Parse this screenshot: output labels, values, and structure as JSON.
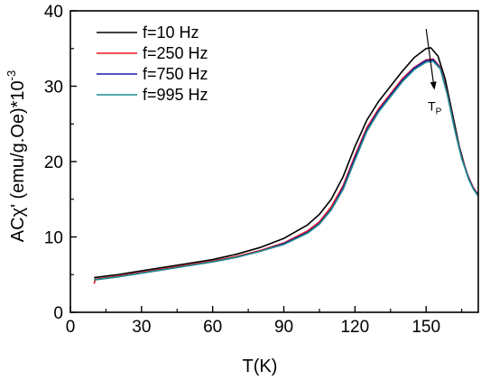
{
  "chart_data": {
    "type": "line",
    "xlabel": "T(K)",
    "ylabel": {
      "prefix": "ACχ' (emu/g.Oe)*10",
      "exponent": "-3"
    },
    "xlim": [
      0,
      172
    ],
    "ylim": [
      0,
      40
    ],
    "xticks": [
      0,
      30,
      60,
      90,
      120,
      150
    ],
    "yticks": [
      0,
      10,
      20,
      30,
      40
    ],
    "grid": false,
    "legend_position": "top-left",
    "annotation": {
      "text": "T",
      "subscript": "P",
      "arrow": true,
      "arrow_from": [
        150,
        37.6
      ],
      "arrow_to": [
        153.5,
        29.5
      ],
      "label_at": [
        153,
        27.5
      ]
    },
    "series": [
      {
        "name": "f=10 Hz",
        "color": "#000000",
        "points": [
          [
            10,
            4.6
          ],
          [
            20,
            5.0
          ],
          [
            30,
            5.5
          ],
          [
            40,
            6.0
          ],
          [
            50,
            6.5
          ],
          [
            60,
            7.0
          ],
          [
            70,
            7.7
          ],
          [
            80,
            8.6
          ],
          [
            90,
            9.8
          ],
          [
            100,
            11.6
          ],
          [
            105,
            13.0
          ],
          [
            110,
            15.0
          ],
          [
            115,
            18.0
          ],
          [
            120,
            22.0
          ],
          [
            125,
            25.5
          ],
          [
            130,
            28.0
          ],
          [
            135,
            30.0
          ],
          [
            140,
            32.0
          ],
          [
            145,
            33.8
          ],
          [
            150,
            35.0
          ],
          [
            152,
            35.1
          ],
          [
            155,
            34.0
          ],
          [
            158,
            31.0
          ],
          [
            161,
            26.5
          ],
          [
            164,
            22.0
          ],
          [
            167,
            18.6
          ],
          [
            170,
            16.4
          ],
          [
            172,
            15.6
          ]
        ]
      },
      {
        "name": "f=250 Hz",
        "color": "#e8141c",
        "points": [
          [
            10,
            3.8
          ],
          [
            10.5,
            4.4
          ],
          [
            20,
            4.8
          ],
          [
            30,
            5.3
          ],
          [
            40,
            5.8
          ],
          [
            50,
            6.3
          ],
          [
            60,
            6.8
          ],
          [
            70,
            7.4
          ],
          [
            80,
            8.2
          ],
          [
            90,
            9.2
          ],
          [
            100,
            10.8
          ],
          [
            105,
            12.0
          ],
          [
            110,
            14.0
          ],
          [
            115,
            16.8
          ],
          [
            120,
            20.8
          ],
          [
            125,
            24.5
          ],
          [
            130,
            27.0
          ],
          [
            135,
            29.0
          ],
          [
            140,
            31.0
          ],
          [
            145,
            32.5
          ],
          [
            150,
            33.5
          ],
          [
            153,
            33.6
          ],
          [
            156,
            32.5
          ],
          [
            159,
            29.0
          ],
          [
            162,
            24.5
          ],
          [
            165,
            20.6
          ],
          [
            168,
            17.8
          ],
          [
            170,
            16.5
          ],
          [
            172,
            15.6
          ]
        ]
      },
      {
        "name": "f=750 Hz",
        "color": "#1a1aa8",
        "points": [
          [
            10,
            4.3
          ],
          [
            20,
            4.7
          ],
          [
            30,
            5.2
          ],
          [
            40,
            5.7
          ],
          [
            50,
            6.2
          ],
          [
            60,
            6.7
          ],
          [
            70,
            7.3
          ],
          [
            80,
            8.1
          ],
          [
            90,
            9.1
          ],
          [
            100,
            10.6
          ],
          [
            105,
            11.8
          ],
          [
            110,
            13.7
          ],
          [
            115,
            16.5
          ],
          [
            120,
            20.5
          ],
          [
            125,
            24.2
          ],
          [
            130,
            26.8
          ],
          [
            135,
            28.8
          ],
          [
            140,
            30.8
          ],
          [
            145,
            32.4
          ],
          [
            150,
            33.4
          ],
          [
            153,
            33.5
          ],
          [
            156,
            32.4
          ],
          [
            159,
            28.9
          ],
          [
            162,
            24.4
          ],
          [
            165,
            20.5
          ],
          [
            168,
            17.7
          ],
          [
            170,
            16.4
          ],
          [
            172,
            15.5
          ]
        ]
      },
      {
        "name": "f=995 Hz",
        "color": "#1e8a8a",
        "points": [
          [
            10,
            4.3
          ],
          [
            20,
            4.7
          ],
          [
            30,
            5.2
          ],
          [
            40,
            5.7
          ],
          [
            50,
            6.2
          ],
          [
            60,
            6.7
          ],
          [
            70,
            7.3
          ],
          [
            80,
            8.1
          ],
          [
            90,
            9.0
          ],
          [
            100,
            10.5
          ],
          [
            105,
            11.7
          ],
          [
            110,
            13.6
          ],
          [
            115,
            16.3
          ],
          [
            120,
            20.2
          ],
          [
            125,
            24.0
          ],
          [
            130,
            26.6
          ],
          [
            135,
            28.6
          ],
          [
            140,
            30.6
          ],
          [
            145,
            32.2
          ],
          [
            150,
            33.2
          ],
          [
            153,
            33.3
          ],
          [
            156,
            32.3
          ],
          [
            159,
            28.8
          ],
          [
            162,
            24.3
          ],
          [
            165,
            20.4
          ],
          [
            168,
            17.6
          ],
          [
            170,
            16.3
          ],
          [
            172,
            15.4
          ]
        ]
      }
    ]
  }
}
